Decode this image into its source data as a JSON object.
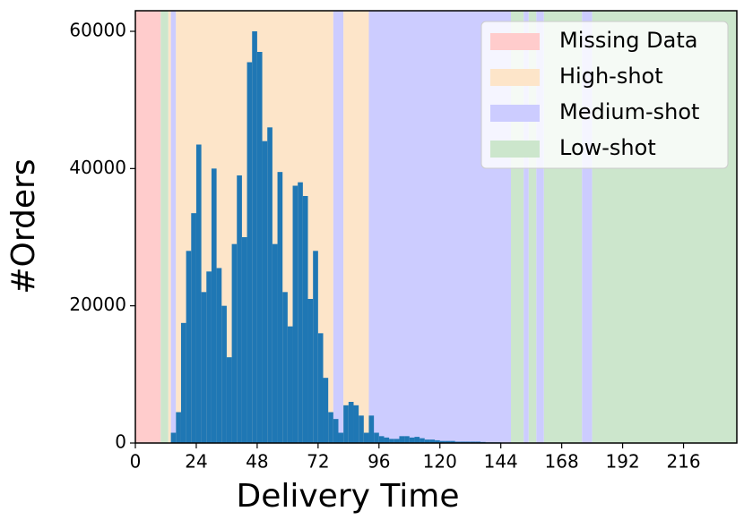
{
  "chart_data": {
    "type": "histogram",
    "xlabel": "Delivery Time",
    "ylabel": "#Orders",
    "xlim": [
      0,
      237
    ],
    "ylim": [
      0,
      63000
    ],
    "xticks": [
      0,
      24,
      48,
      72,
      96,
      120,
      144,
      168,
      192,
      216
    ],
    "yticks": [
      0,
      20000,
      40000,
      60000
    ],
    "color": "#1f77b4",
    "bins": [
      14,
      16,
      18,
      20,
      22,
      24,
      26,
      28,
      30,
      32,
      34,
      36,
      38,
      40,
      42,
      44,
      46,
      48,
      50,
      52,
      54,
      56,
      58,
      60,
      62,
      64,
      66,
      68,
      70,
      72,
      74,
      76,
      78,
      80,
      82,
      84,
      86,
      88,
      90,
      92,
      94,
      96,
      98,
      100,
      102,
      104,
      106,
      108,
      110,
      112,
      114,
      116,
      118,
      120,
      122,
      124,
      126,
      128,
      130,
      132,
      134,
      136,
      138,
      140,
      142,
      144,
      146,
      148,
      150,
      152,
      154,
      156,
      158,
      160
    ],
    "counts": [
      1500,
      4500,
      17500,
      28000,
      33500,
      43500,
      22000,
      25000,
      40000,
      25500,
      20000,
      12500,
      29000,
      39000,
      30000,
      55500,
      60000,
      57000,
      44000,
      46000,
      29000,
      39500,
      22000,
      17000,
      37500,
      38000,
      36000,
      21000,
      28000,
      16000,
      9500,
      4500,
      3500,
      1500,
      5500,
      6000,
      5500,
      4000,
      1500,
      4000,
      1500,
      1000,
      800,
      600,
      600,
      1000,
      1000,
      800,
      900,
      700,
      500,
      500,
      400,
      300,
      300,
      300,
      200,
      200,
      200,
      200,
      200,
      150,
      100,
      100,
      100,
      50,
      50,
      50,
      20,
      20,
      20,
      10,
      10
    ],
    "series": [
      {
        "name": "Missing Data",
        "color": "#ffcccc"
      },
      {
        "name": "High-shot",
        "color": "#fde5c9"
      },
      {
        "name": "Medium-shot",
        "color": "#ccccff"
      },
      {
        "name": "Low-shot",
        "color": "#cce6cc"
      }
    ],
    "regions": [
      {
        "start": 0,
        "end": 10,
        "series": 0
      },
      {
        "start": 10,
        "end": 13,
        "series": 3
      },
      {
        "start": 13,
        "end": 14,
        "series": 1
      },
      {
        "start": 14,
        "end": 16,
        "series": 2
      },
      {
        "start": 16,
        "end": 78,
        "series": 1
      },
      {
        "start": 78,
        "end": 82,
        "series": 2
      },
      {
        "start": 82,
        "end": 92,
        "series": 1
      },
      {
        "start": 92,
        "end": 148,
        "series": 2
      },
      {
        "start": 148,
        "end": 153,
        "series": 3
      },
      {
        "start": 153,
        "end": 155,
        "series": 2
      },
      {
        "start": 155,
        "end": 158,
        "series": 3
      },
      {
        "start": 158,
        "end": 161,
        "series": 2
      },
      {
        "start": 161,
        "end": 176,
        "series": 3
      },
      {
        "start": 176,
        "end": 180,
        "series": 2
      },
      {
        "start": 180,
        "end": 237,
        "series": 3
      }
    ],
    "legend": "upper right"
  }
}
